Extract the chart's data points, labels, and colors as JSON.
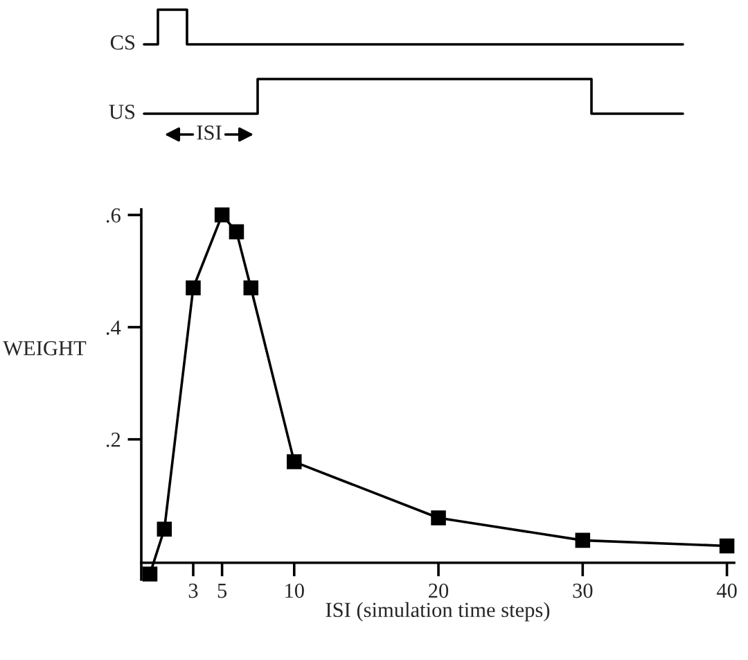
{
  "chart_data": {
    "type": "line",
    "xlabel": "ISI (simulation time steps)",
    "ylabel": "WEIGHT",
    "x": [
      0,
      1,
      3,
      5,
      6,
      7,
      10,
      20,
      30,
      40
    ],
    "series": [
      {
        "color": "#000000",
        "values": [
          -0.04,
          0.04,
          0.47,
          0.6,
          0.57,
          0.47,
          0.16,
          0.06,
          0.02,
          0.01
        ]
      }
    ],
    "xlim": [
      -0.6,
      40.5
    ],
    "xticks": [
      3,
      5,
      10,
      20,
      30,
      40
    ],
    "ylim": [
      -0.05,
      0.61
    ],
    "yticks": [
      {
        "value": 0.2,
        "label": ".2"
      },
      {
        "value": 0.4,
        "label": ".4"
      },
      {
        "value": 0.6,
        "label": ".6"
      }
    ],
    "marker": "square",
    "line_style": "solid",
    "grid": false,
    "legend": false,
    "annotations": [
      "CS",
      "US",
      "ISI"
    ]
  }
}
